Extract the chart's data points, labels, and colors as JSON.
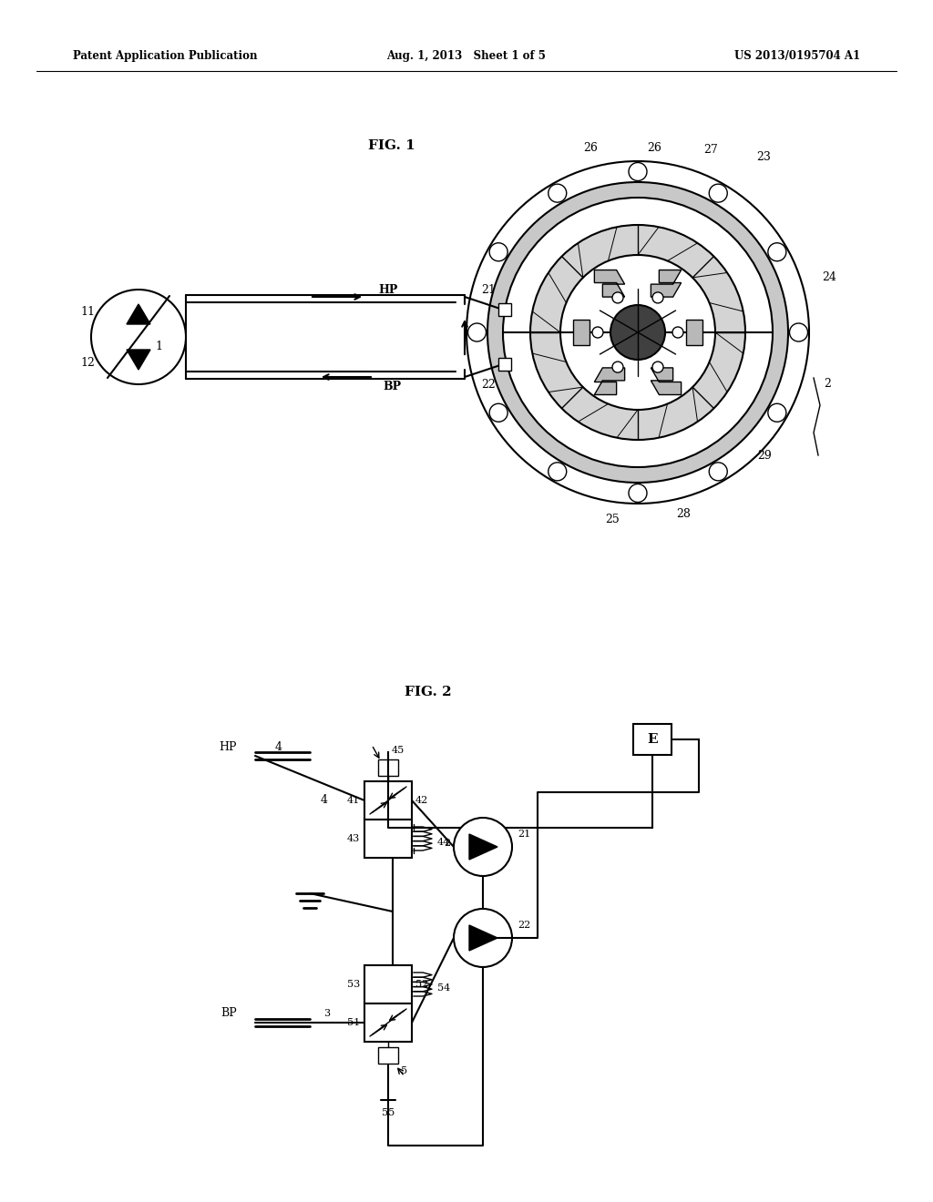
{
  "bg_color": "#ffffff",
  "lc": "#000000",
  "header_left": "Patent Application Publication",
  "header_mid": "Aug. 1, 2013   Sheet 1 of 5",
  "header_right": "US 2013/0195704 A1",
  "fig1_label": "FIG. 1",
  "fig2_label": "FIG. 2",
  "lw": 1.5,
  "lw_t": 1.0,
  "fs": 9,
  "fs_hdr": 8.5,
  "fs_fig": 11
}
